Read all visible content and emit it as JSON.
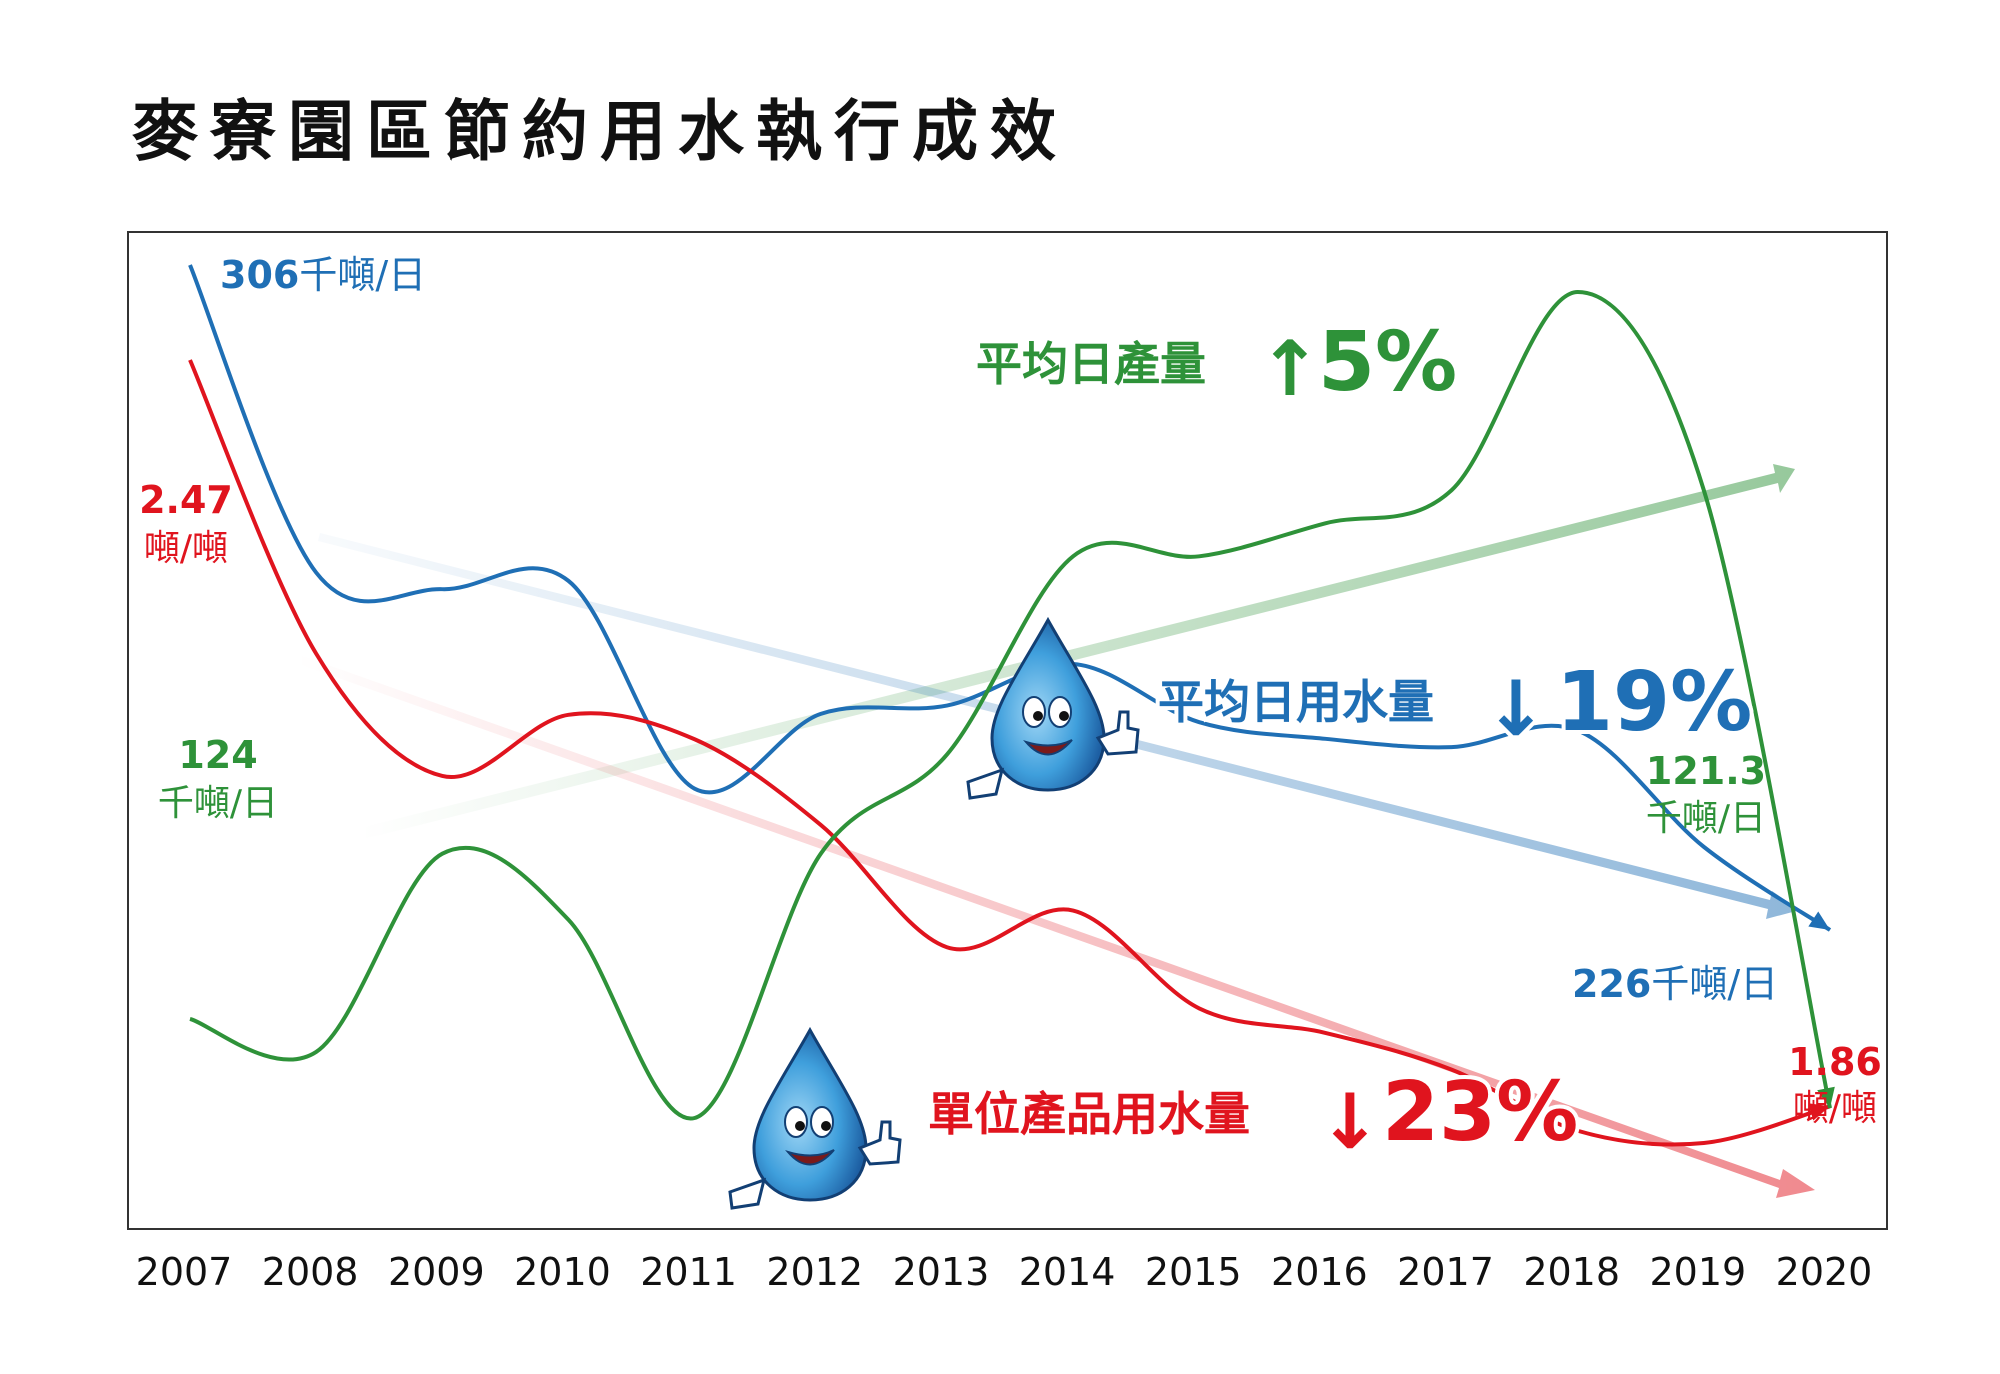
{
  "title": "麥寮園區節約用水執行成效",
  "chart_data": {
    "type": "line",
    "categories": [
      "2007",
      "2008",
      "2009",
      "2010",
      "2011",
      "2012",
      "2013",
      "2014",
      "2015",
      "2016",
      "2017",
      "2018",
      "2019",
      "2020"
    ],
    "series": [
      {
        "key": "water",
        "color": "#1f6fb5",
        "values": [
          306,
          269,
          267,
          268,
          243,
          252,
          253,
          258,
          251,
          249,
          248,
          250,
          236,
          226
        ]
      },
      {
        "key": "unit",
        "color": "#e0141e",
        "values": [
          2.47,
          2.23,
          2.13,
          2.18,
          2.16,
          2.09,
          1.99,
          2.02,
          1.94,
          1.92,
          1.89,
          1.84,
          1.83,
          1.86
        ]
      },
      {
        "key": "production",
        "color": "#2e9239",
        "values": [
          124,
          123,
          129,
          127,
          121,
          129,
          132,
          138,
          138,
          139,
          140,
          146,
          140,
          121.3
        ]
      }
    ],
    "start_labels": {
      "water": {
        "value": "306",
        "unit": "千噸/日"
      },
      "unit": {
        "value": "2.47",
        "unit": "噸/噸"
      },
      "production": {
        "value": "124",
        "unit": "千噸/日"
      }
    },
    "end_labels": {
      "water": {
        "value": "226",
        "unit": "千噸/日"
      },
      "unit": {
        "value": "1.86",
        "unit": "噸/噸"
      },
      "production": {
        "value": "121.3",
        "unit": "千噸/日"
      }
    },
    "annotations": [
      {
        "key": "production",
        "text": "平均日產量",
        "arrow": "↑",
        "pct": "5%"
      },
      {
        "key": "water",
        "text": "平均日用水量",
        "arrow": "↓",
        "pct": "19%"
      },
      {
        "key": "unit",
        "text": "單位產品用水量",
        "arrow": "↓",
        "pct": "23%"
      }
    ],
    "grid": false,
    "mascot": "water-drop-thumbs-up"
  },
  "colors": {
    "blue": "#1f6fb5",
    "red": "#e0141e",
    "green": "#2e9239"
  }
}
